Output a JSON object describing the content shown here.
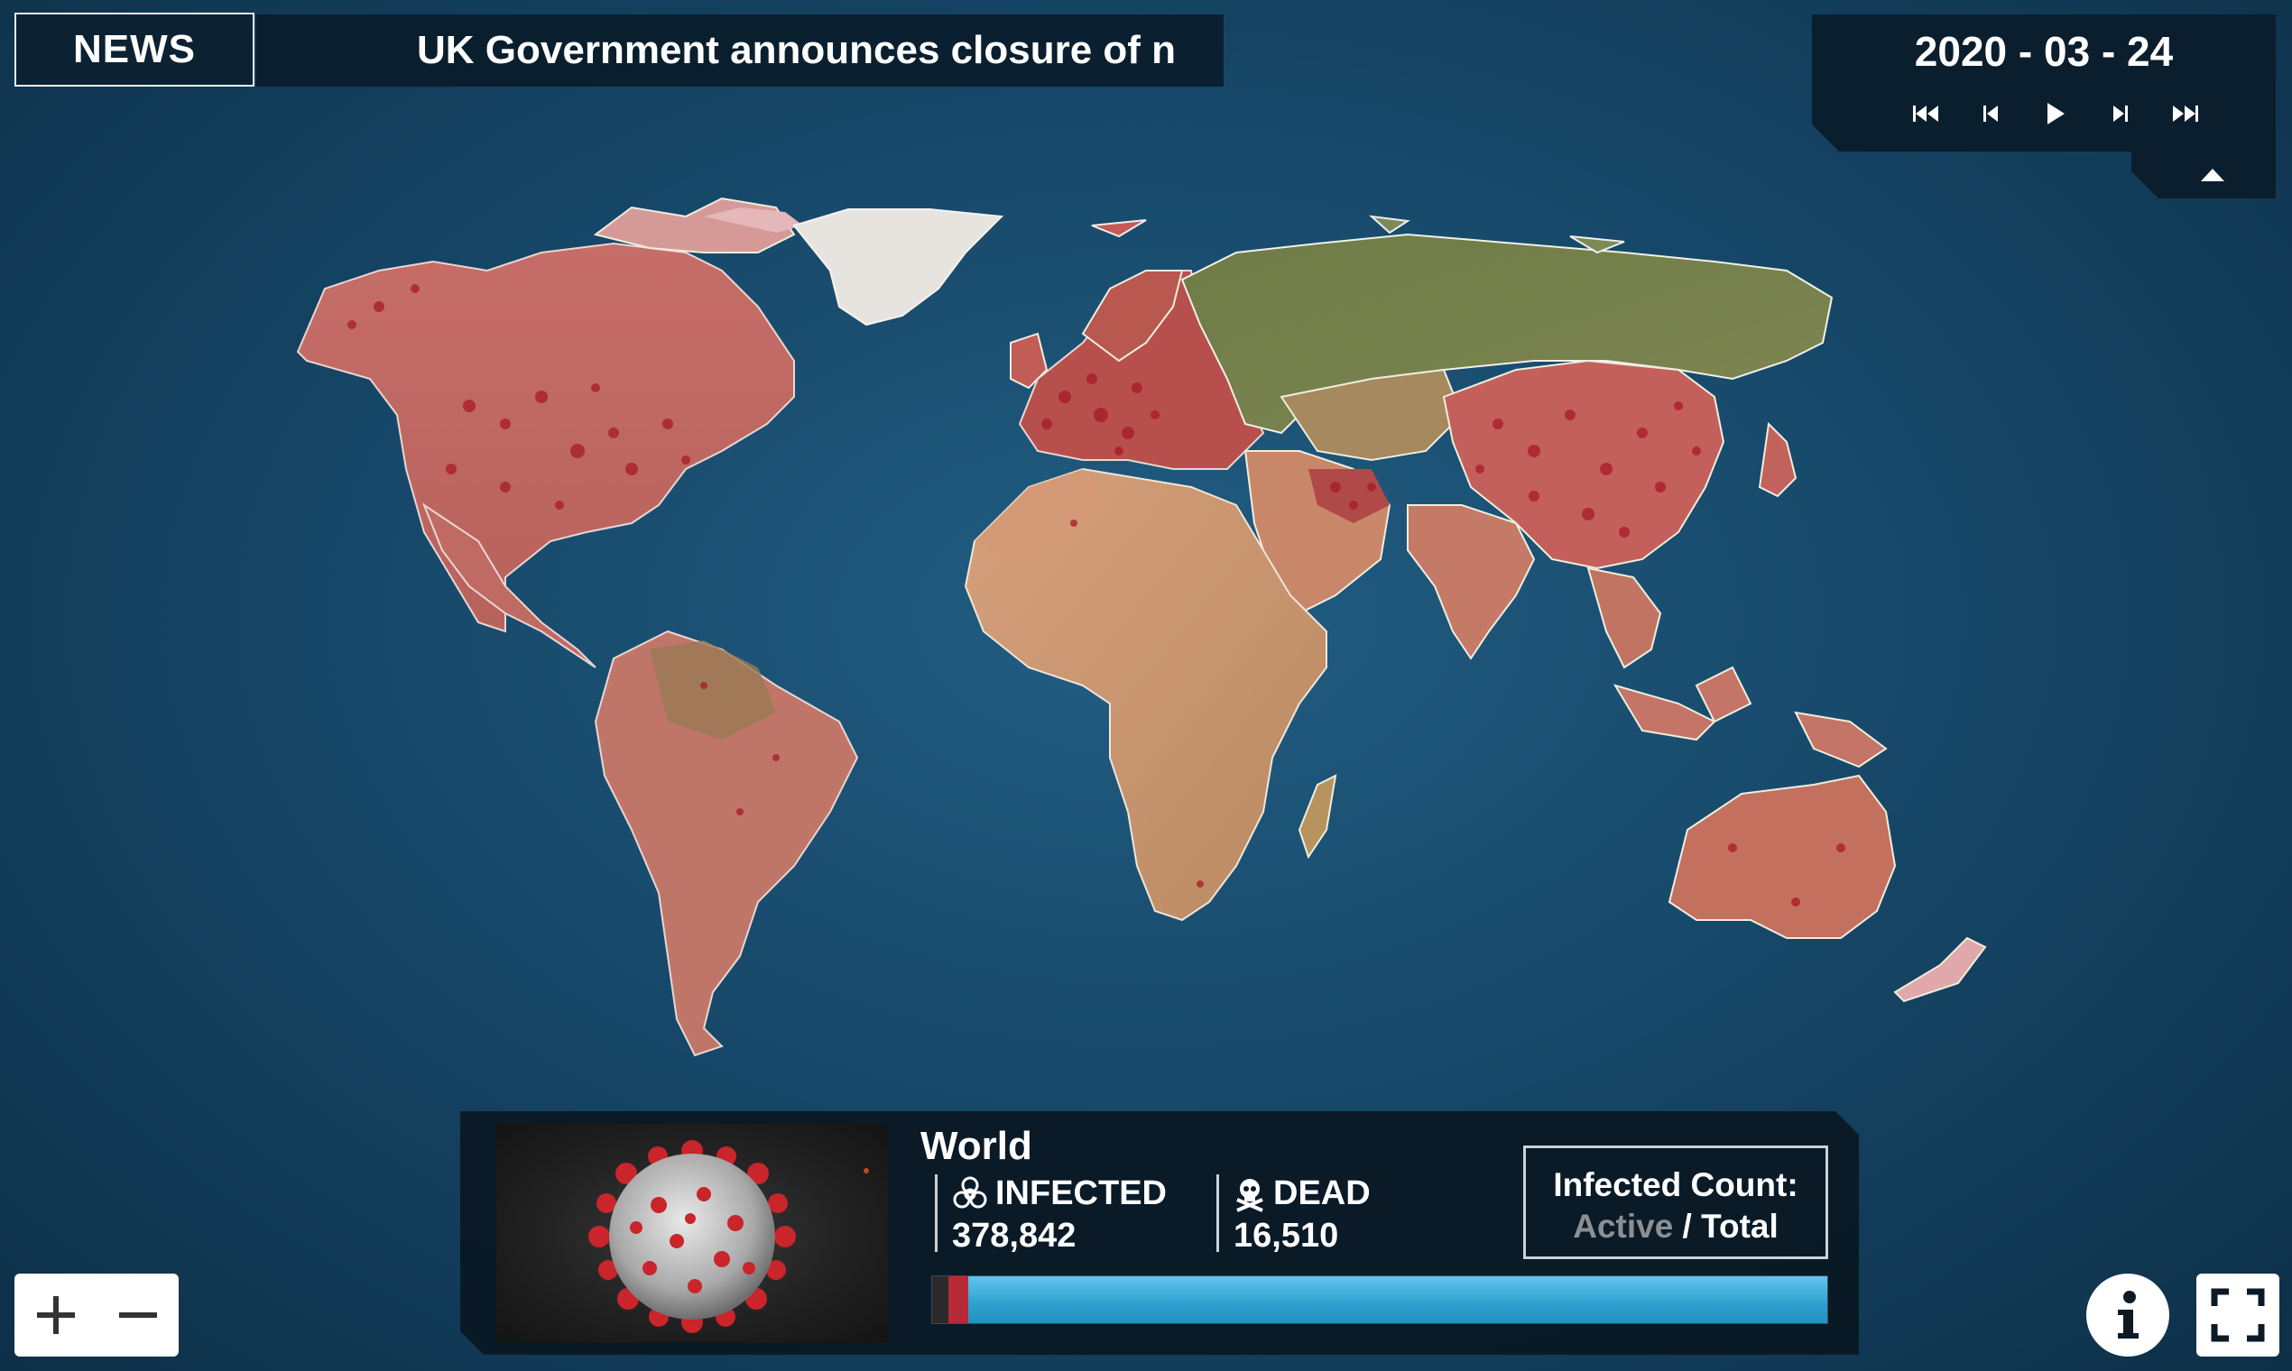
{
  "news": {
    "label": "NEWS",
    "headline": "UK Government announces closure of n"
  },
  "timeline": {
    "date": "2020 - 03 - 24",
    "controls": [
      "skip-to-start",
      "step-back",
      "play",
      "step-forward",
      "skip-to-end"
    ]
  },
  "stats": {
    "region": "World",
    "infected_label": "INFECTED",
    "infected_value": "378,842",
    "dead_label": "DEAD",
    "dead_value": "16,510",
    "count_title": "Infected Count:",
    "count_active": "Active",
    "count_separator": " / ",
    "count_total": "Total",
    "progress": {
      "dead_fraction": 0.018,
      "red_fraction": 0.022
    }
  },
  "colors": {
    "ocean": "#174a6c",
    "infected_land": "#c9736b",
    "hotspot": "#b01c2a",
    "uninfected_land": "#6f7a4a",
    "progress_blue": "#3fb0de"
  },
  "icons": {
    "infected": "biohazard-icon",
    "dead": "skull-icon",
    "zoom_in": "plus-icon",
    "zoom_out": "minus-icon",
    "info": "info-icon",
    "fullscreen": "fullscreen-icon",
    "collapse": "chevron-up-icon"
  }
}
